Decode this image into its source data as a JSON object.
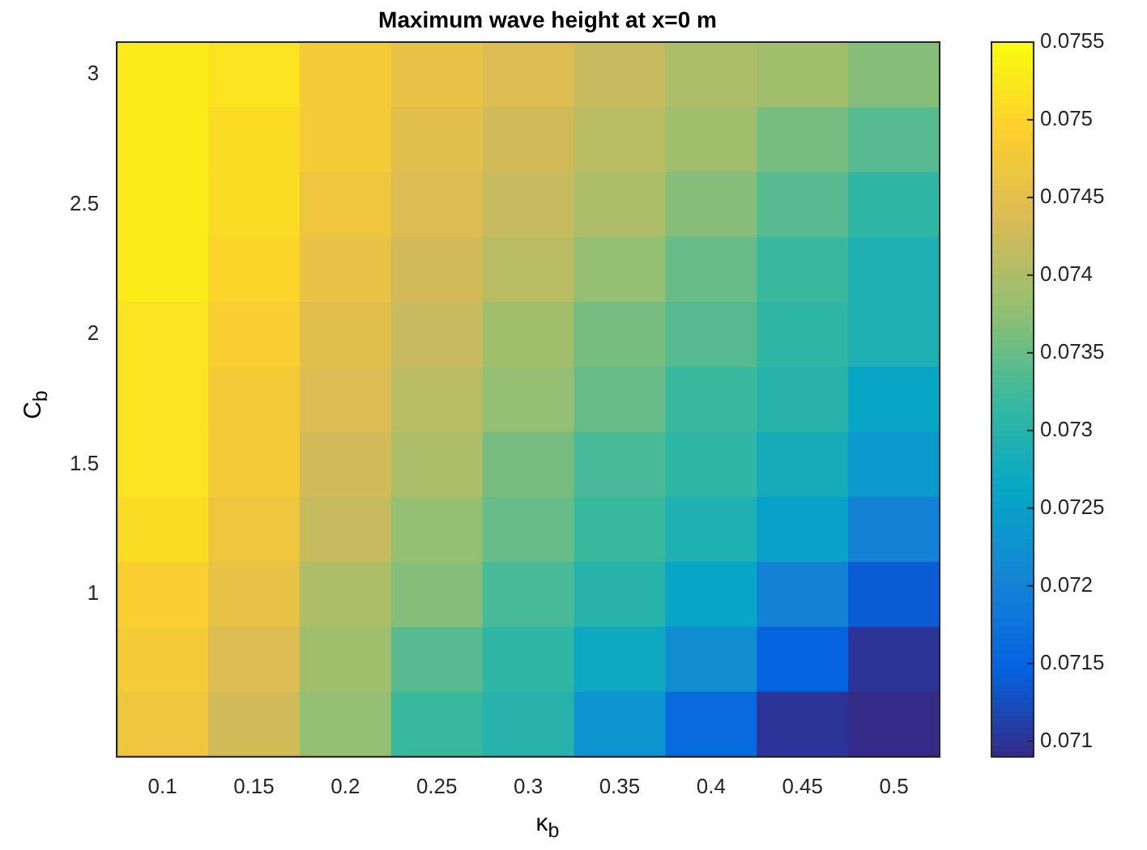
{
  "chart_data": {
    "type": "heatmap",
    "title": "Maximum wave height at x=0 m",
    "xlabel": "κ$_{b}$",
    "ylabel": "C$_{b}$",
    "categories": [
      "0.1",
      "0.15",
      "0.2",
      "0.25",
      "0.3",
      "0.35",
      "0.4",
      "0.45",
      "0.5"
    ],
    "y_categories": [
      "3",
      null,
      "2.5",
      null,
      "2",
      null,
      "1.5",
      null,
      "1",
      null,
      null
    ],
    "cells": [
      [
        0.0753,
        0.0752,
        0.0748,
        0.0746,
        0.0744,
        0.0742,
        0.074,
        0.0739,
        0.0737
      ],
      [
        0.0753,
        0.0751,
        0.0748,
        0.0745,
        0.0743,
        0.0741,
        0.0739,
        0.0736,
        0.0734
      ],
      [
        0.0753,
        0.0751,
        0.0747,
        0.0744,
        0.0742,
        0.074,
        0.0737,
        0.0734,
        0.0731
      ],
      [
        0.0753,
        0.075,
        0.0746,
        0.0743,
        0.0741,
        0.0738,
        0.0735,
        0.0732,
        0.0729
      ],
      [
        0.0752,
        0.0749,
        0.0745,
        0.0742,
        0.0739,
        0.0736,
        0.0734,
        0.0731,
        0.0729
      ],
      [
        0.0752,
        0.0748,
        0.0744,
        0.0741,
        0.0738,
        0.0735,
        0.0732,
        0.073,
        0.0726
      ],
      [
        0.0752,
        0.0748,
        0.0743,
        0.074,
        0.0736,
        0.0733,
        0.0731,
        0.0728,
        0.0724
      ],
      [
        0.0751,
        0.0747,
        0.0742,
        0.0738,
        0.0735,
        0.0732,
        0.0729,
        0.0725,
        0.072
      ],
      [
        0.0749,
        0.0746,
        0.074,
        0.0737,
        0.0733,
        0.073,
        0.0726,
        0.072,
        0.0714
      ],
      [
        0.0748,
        0.0744,
        0.0739,
        0.0734,
        0.0731,
        0.0727,
        0.0722,
        0.0715,
        0.071
      ],
      [
        0.0747,
        0.0743,
        0.0738,
        0.0732,
        0.073,
        0.0723,
        0.0716,
        0.071,
        0.0709
      ]
    ],
    "clim": [
      0.0709,
      0.0755
    ],
    "cticks": [
      0.071,
      0.0715,
      0.072,
      0.0725,
      0.073,
      0.0735,
      0.074,
      0.0745,
      0.075,
      0.0755
    ]
  }
}
